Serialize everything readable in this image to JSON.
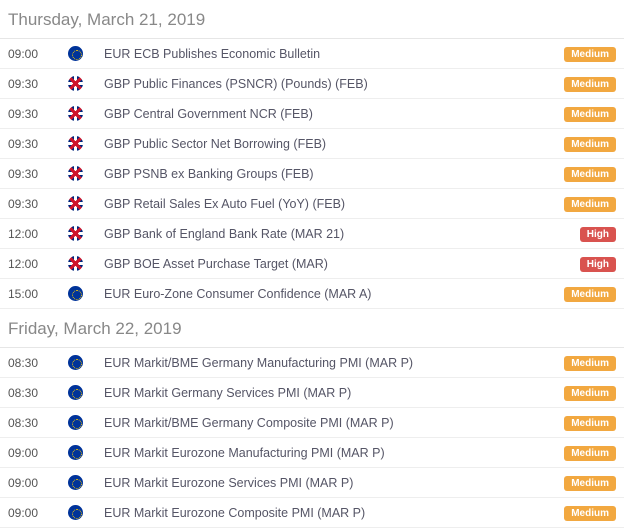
{
  "colors": {
    "medium_badge_bg": "#f2a840",
    "high_badge_bg": "#d9534f",
    "badge_text": "#ffffff",
    "header_text": "#888888",
    "row_text": "#555566",
    "border": "#eeeeee"
  },
  "impact_labels": {
    "medium": "Medium",
    "high": "High"
  },
  "days": [
    {
      "heading": "Thursday, March 21, 2019",
      "events": [
        {
          "time": "09:00",
          "flag": "eu",
          "title": "EUR ECB Publishes Economic Bulletin",
          "impact": "medium"
        },
        {
          "time": "09:30",
          "flag": "uk",
          "title": "GBP Public Finances (PSNCR) (Pounds) (FEB)",
          "impact": "medium"
        },
        {
          "time": "09:30",
          "flag": "uk",
          "title": "GBP Central Government NCR (FEB)",
          "impact": "medium"
        },
        {
          "time": "09:30",
          "flag": "uk",
          "title": "GBP Public Sector Net Borrowing (FEB)",
          "impact": "medium"
        },
        {
          "time": "09:30",
          "flag": "uk",
          "title": "GBP PSNB ex Banking Groups (FEB)",
          "impact": "medium"
        },
        {
          "time": "09:30",
          "flag": "uk",
          "title": "GBP Retail Sales Ex Auto Fuel (YoY) (FEB)",
          "impact": "medium"
        },
        {
          "time": "12:00",
          "flag": "uk",
          "title": "GBP Bank of England Bank Rate (MAR 21)",
          "impact": "high"
        },
        {
          "time": "12:00",
          "flag": "uk",
          "title": "GBP BOE Asset Purchase Target (MAR)",
          "impact": "high"
        },
        {
          "time": "15:00",
          "flag": "eu",
          "title": "EUR Euro-Zone Consumer Confidence (MAR A)",
          "impact": "medium"
        }
      ]
    },
    {
      "heading": "Friday, March 22, 2019",
      "events": [
        {
          "time": "08:30",
          "flag": "eu",
          "title": "EUR Markit/BME Germany Manufacturing PMI (MAR P)",
          "impact": "medium"
        },
        {
          "time": "08:30",
          "flag": "eu",
          "title": "EUR Markit Germany Services PMI (MAR P)",
          "impact": "medium"
        },
        {
          "time": "08:30",
          "flag": "eu",
          "title": "EUR Markit/BME Germany Composite PMI (MAR P)",
          "impact": "medium"
        },
        {
          "time": "09:00",
          "flag": "eu",
          "title": "EUR Markit Eurozone Manufacturing PMI (MAR P)",
          "impact": "medium"
        },
        {
          "time": "09:00",
          "flag": "eu",
          "title": "EUR Markit Eurozone Services PMI (MAR P)",
          "impact": "medium"
        },
        {
          "time": "09:00",
          "flag": "eu",
          "title": "EUR Markit Eurozone Composite PMI (MAR P)",
          "impact": "medium"
        }
      ]
    }
  ]
}
